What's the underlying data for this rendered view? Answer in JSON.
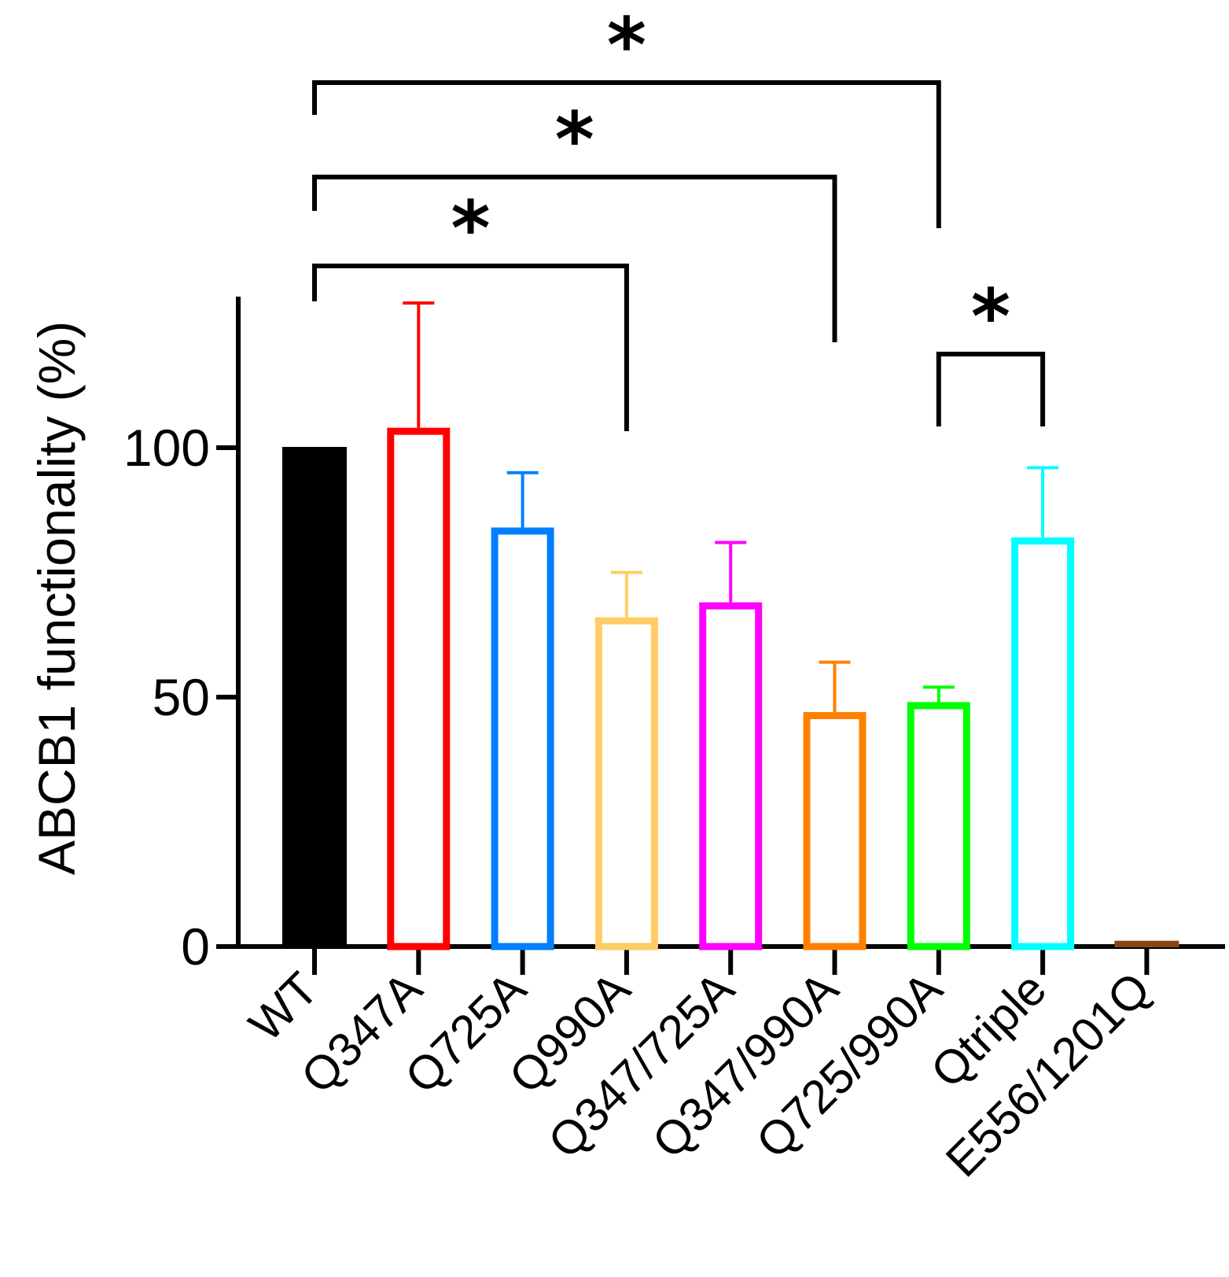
{
  "chart_data": {
    "type": "bar",
    "title": "",
    "xlabel": "",
    "ylabel": "ABCB1 functionality (%)",
    "ylim": [
      0,
      130
    ],
    "yticks": [
      0,
      50,
      100
    ],
    "categories": [
      "WT",
      "Q347A",
      "Q725A",
      "Q990A",
      "Q347/725A",
      "Q347/990A",
      "Q725/990A",
      "Qtriple",
      "E556/1201Q"
    ],
    "values": [
      100,
      104,
      84,
      66,
      69,
      47,
      49,
      82,
      1
    ],
    "errors": [
      0,
      25,
      11,
      9,
      12,
      10,
      3,
      14,
      0.5
    ],
    "fill": [
      "filled",
      "open",
      "open",
      "open",
      "open",
      "open",
      "open",
      "open",
      "filled"
    ],
    "colors": [
      "#000000",
      "#ff0000",
      "#0080ff",
      "#ffcc66",
      "#ff00ff",
      "#ff8000",
      "#00ff00",
      "#00ffff",
      "#8b4513"
    ],
    "significance": [
      {
        "from": "WT",
        "to": "Q990A",
        "label": "*"
      },
      {
        "from": "WT",
        "to": "Q347/990A",
        "label": "*"
      },
      {
        "from": "WT",
        "to": "Q725/990A",
        "label": "*"
      },
      {
        "from": "Q725/990A",
        "to": "Qtriple",
        "label": "*"
      }
    ]
  }
}
